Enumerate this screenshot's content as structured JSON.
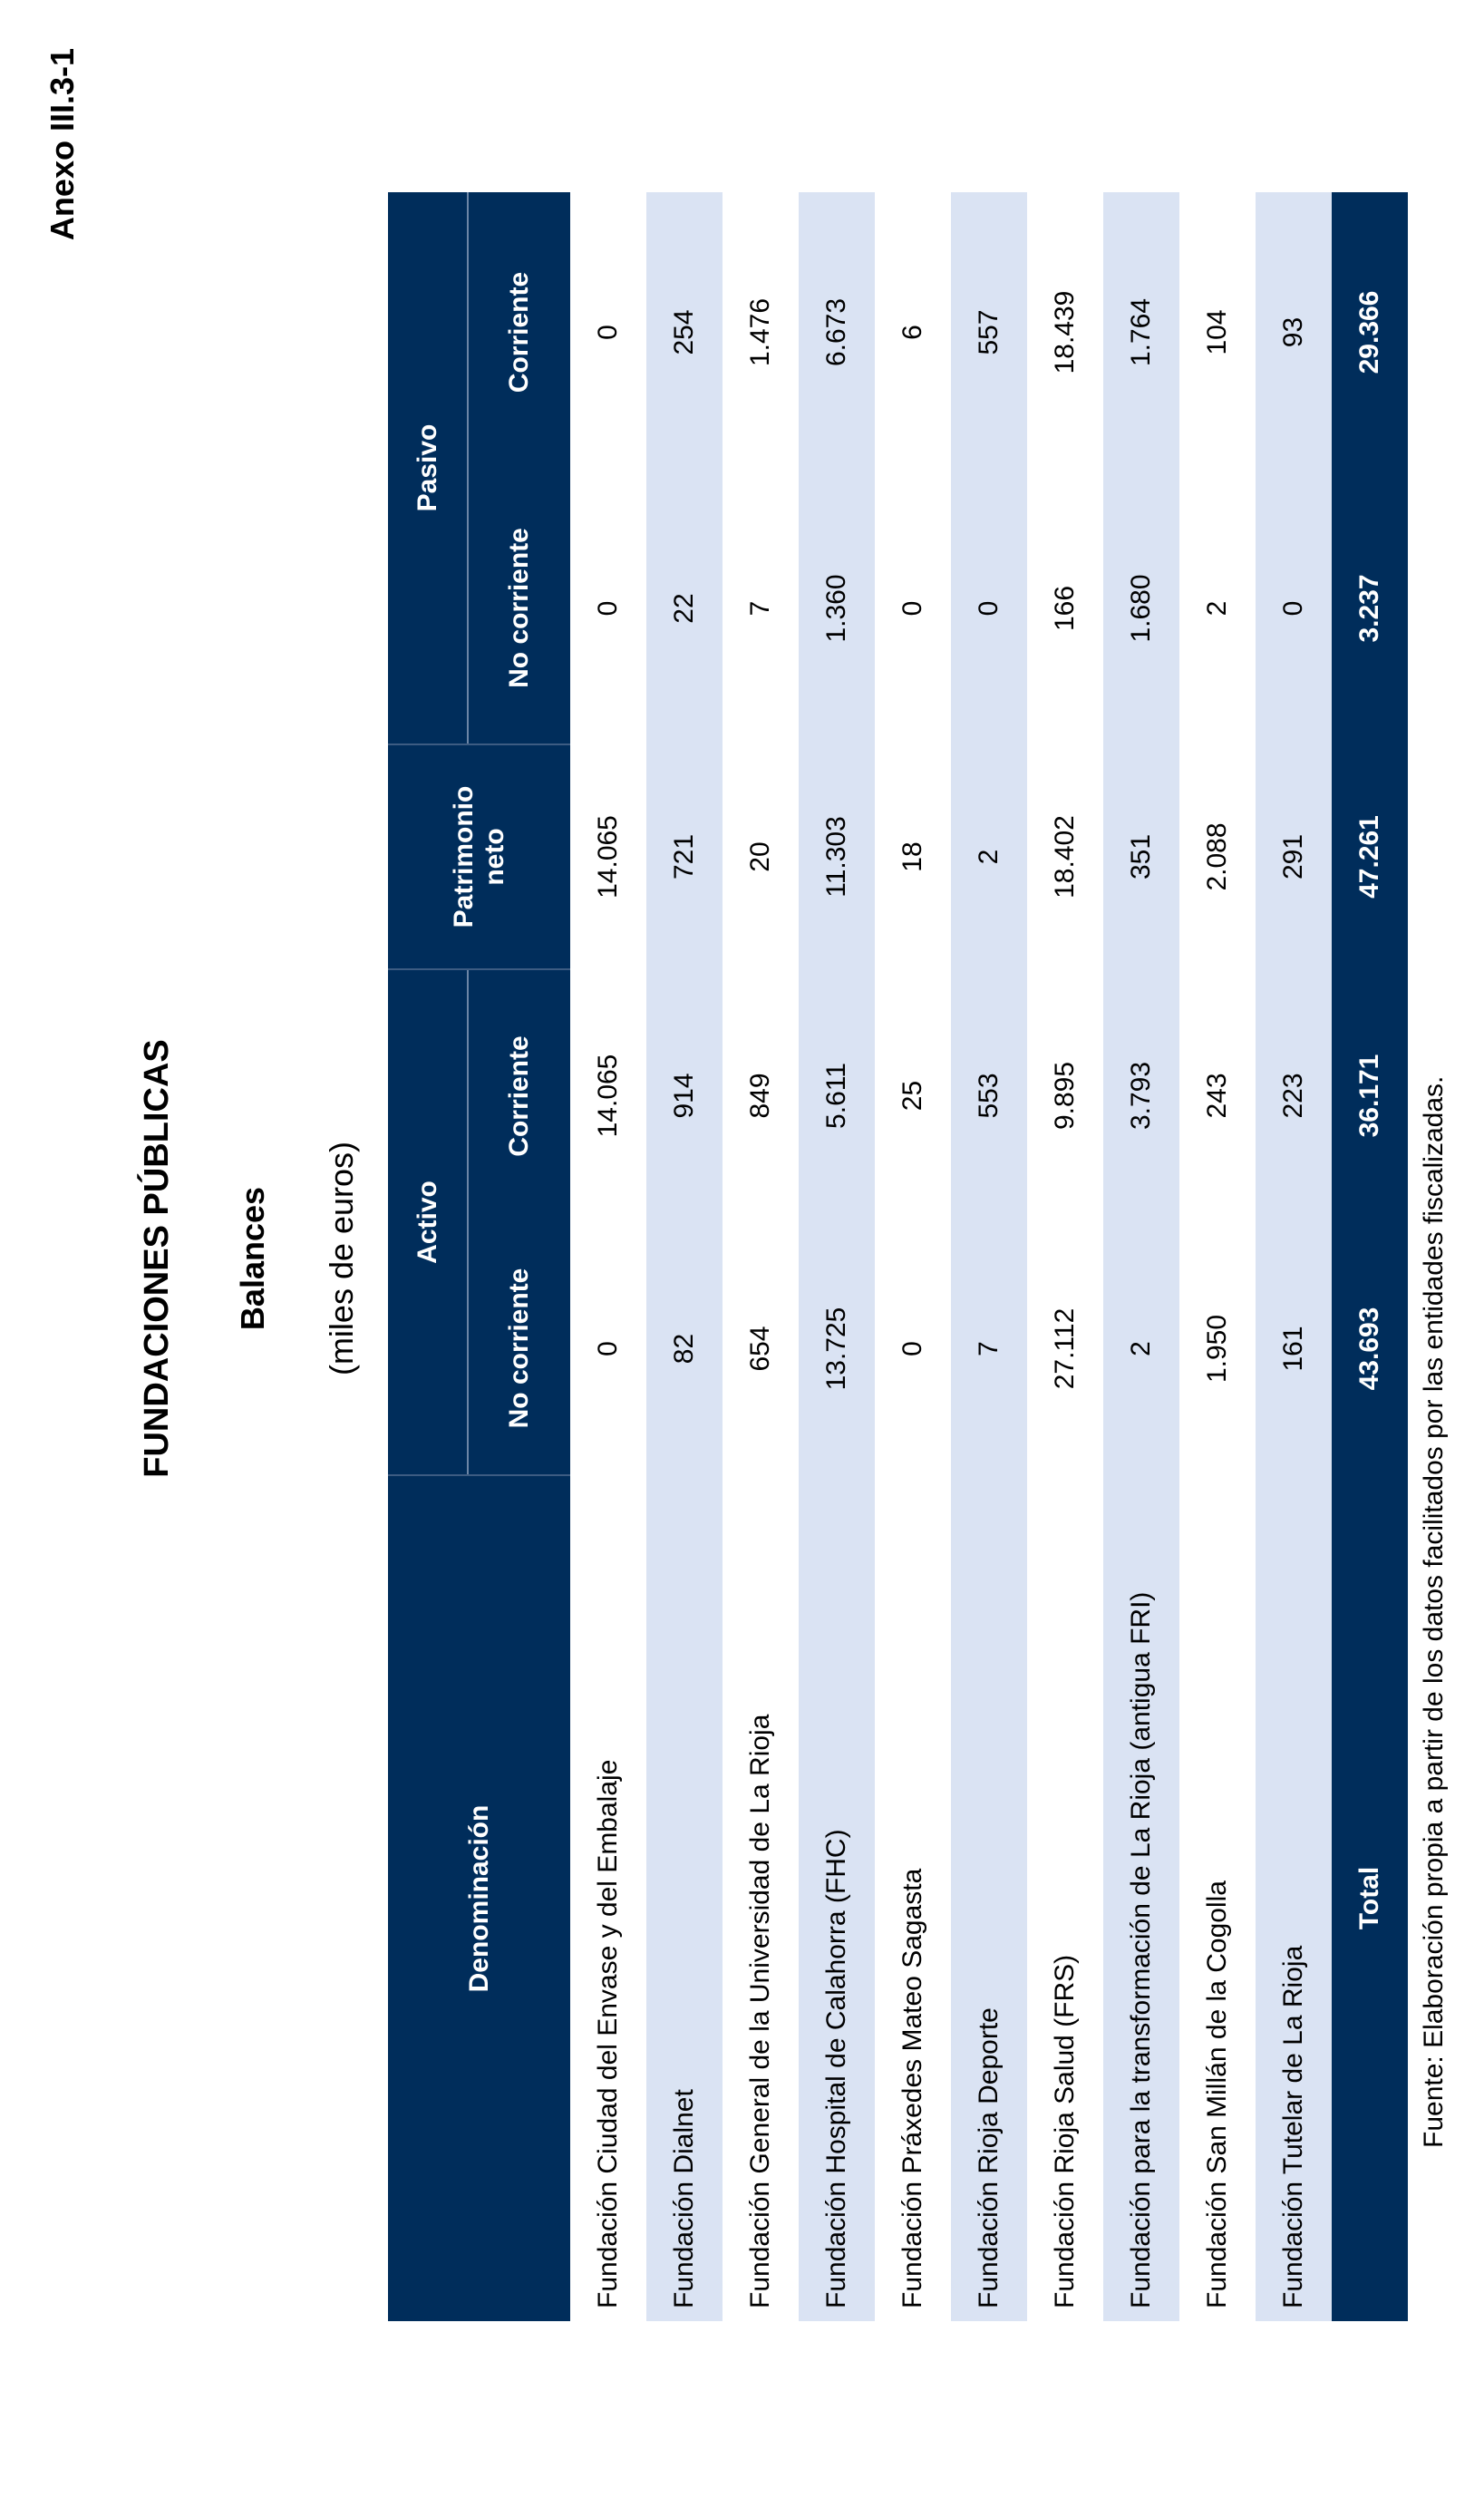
{
  "annex": "Anexo III.3-1",
  "title": "FUNDACIONES PÚBLICAS",
  "subtitle": "Balances",
  "units": "(miles de euros)",
  "table": {
    "header": {
      "denominacion": "Denominación",
      "activo": "Activo",
      "patrimonio": "Patrimonio neto",
      "pasivo": "Pasivo",
      "subcolumns": [
        "No corriente",
        "Corriente",
        "No corriente",
        "Corriente"
      ]
    },
    "rows": [
      [
        "Fundación Ciudad del Envase y del Embalaje",
        "0",
        "14.065",
        "14.065",
        "0",
        "0"
      ],
      [
        "Fundación Dialnet",
        "82",
        "914",
        "721",
        "22",
        "254"
      ],
      [
        "Fundación General de la Universidad de La Rioja",
        "654",
        "849",
        "20",
        "7",
        "1.476"
      ],
      [
        "Fundación Hospital de Calahorra (FHC)",
        "13.725",
        "5.611",
        "11.303",
        "1.360",
        "6.673"
      ],
      [
        "Fundación Práxedes Mateo Sagasta",
        "0",
        "25",
        "18",
        "0",
        "6"
      ],
      [
        "Fundación Rioja Deporte",
        "7",
        "553",
        "2",
        "0",
        "557"
      ],
      [
        "Fundación Rioja Salud (FRS)",
        "27.112",
        "9.895",
        "18.402",
        "166",
        "18.439"
      ],
      [
        "Fundación para la transformación de La Rioja (antigua FRI)",
        "2",
        "3.793",
        "351",
        "1.680",
        "1.764"
      ],
      [
        "Fundación San Millán de la Cogolla",
        "1.950",
        "243",
        "2.088",
        "2",
        "104"
      ],
      [
        "Fundación Tutelar de La Rioja",
        "161",
        "223",
        "291",
        "0",
        "93"
      ]
    ],
    "total": [
      "Total",
      "43.693",
      "36.171",
      "47.261",
      "3.237",
      "29.366"
    ]
  },
  "source": "Fuente: Elaboración propia a partir de los datos facilitados por las entidades fiscalizadas."
}
